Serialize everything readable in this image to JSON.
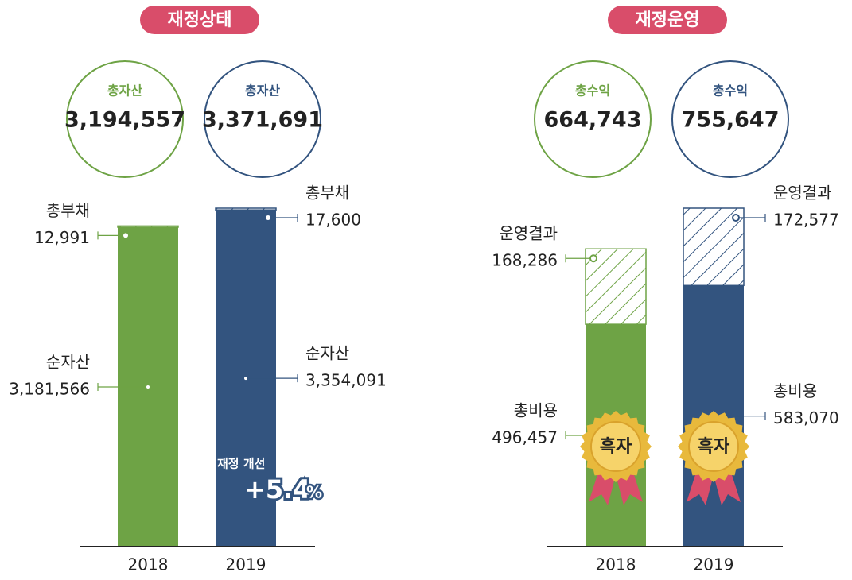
{
  "chart_data": [
    {
      "type": "bar",
      "stacked": true,
      "title": "재정상태",
      "categories": [
        "2018",
        "2019"
      ],
      "colors": [
        "#6ea345",
        "#33547f"
      ],
      "totals": {
        "label": "총자산",
        "values": [
          3194557,
          3371691
        ],
        "value_labels": [
          "3,194,557",
          "3,371,691"
        ]
      },
      "series": [
        {
          "name": "순자산",
          "values": [
            3181566,
            3354091
          ],
          "value_labels": [
            "3,181,566",
            "3,354,091"
          ],
          "pattern": "solid"
        },
        {
          "name": "총부채",
          "values": [
            12991,
            17600
          ],
          "value_labels": [
            "12,991",
            "17,600"
          ],
          "pattern": "hatch"
        }
      ],
      "annotation": {
        "text": "재정 개선",
        "value_label": "+5.4",
        "unit": "%"
      }
    },
    {
      "type": "bar",
      "stacked": true,
      "title": "재정운영",
      "categories": [
        "2018",
        "2019"
      ],
      "colors": [
        "#6ea345",
        "#33547f"
      ],
      "totals": {
        "label": "총수익",
        "values": [
          664743,
          755647
        ],
        "value_labels": [
          "664,743",
          "755,647"
        ]
      },
      "series": [
        {
          "name": "총비용",
          "values": [
            496457,
            583070
          ],
          "value_labels": [
            "496,457",
            "583,070"
          ],
          "pattern": "solid"
        },
        {
          "name": "운영결과",
          "values": [
            168286,
            172577
          ],
          "value_labels": [
            "168,286",
            "172,577"
          ],
          "pattern": "hatch"
        }
      ],
      "badge": "흑자"
    }
  ]
}
